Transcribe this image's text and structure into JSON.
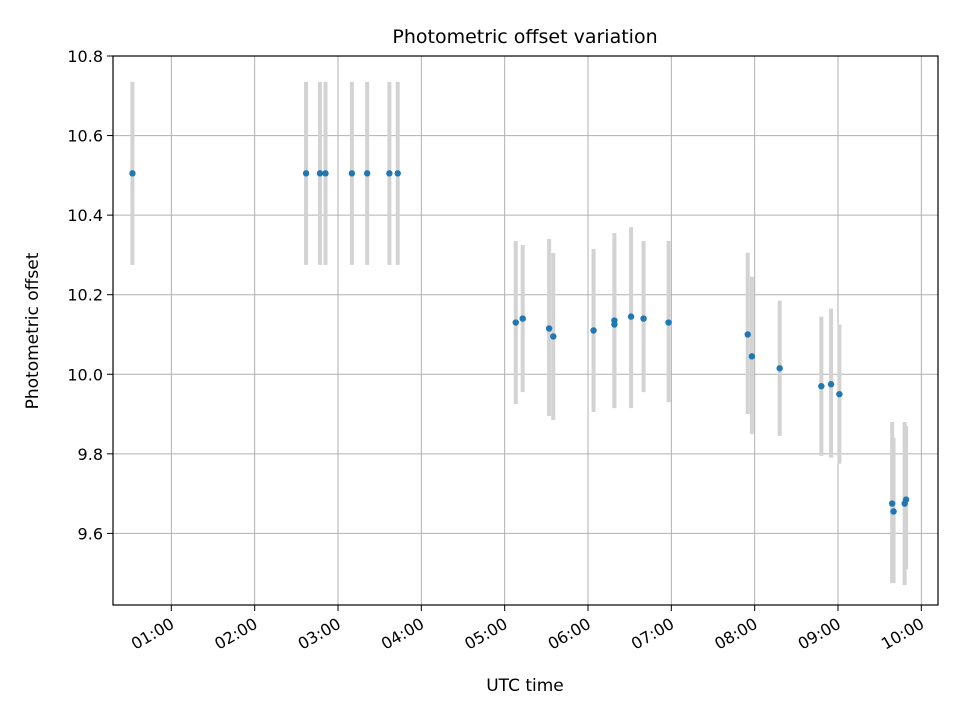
{
  "chart_data": {
    "type": "scatter",
    "title": "Photometric offset variation",
    "xlabel": "UTC time",
    "ylabel": "Photometric offset",
    "xlim": [
      "00:18",
      "10:12"
    ],
    "ylim": [
      9.42,
      10.8
    ],
    "x_ticks": [
      "01:00",
      "02:00",
      "03:00",
      "04:00",
      "05:00",
      "06:00",
      "07:00",
      "08:00",
      "09:00",
      "10:00"
    ],
    "y_ticks": [
      "9.6",
      "9.8",
      "10.0",
      "10.2",
      "10.4",
      "10.6",
      "10.8"
    ],
    "grid": true,
    "colors": {
      "points": "#1f77b4",
      "error_bars": "#d3d3d3",
      "grid": "#b0b0b0"
    },
    "series": [
      {
        "points": [
          {
            "x": "00:32",
            "y": 10.505,
            "ylow": 10.275,
            "yhigh": 10.735
          },
          {
            "x": "02:37",
            "y": 10.505,
            "ylow": 10.275,
            "yhigh": 10.735
          },
          {
            "x": "02:47",
            "y": 10.505,
            "ylow": 10.275,
            "yhigh": 10.735
          },
          {
            "x": "02:51",
            "y": 10.505,
            "ylow": 10.275,
            "yhigh": 10.735
          },
          {
            "x": "03:10",
            "y": 10.505,
            "ylow": 10.275,
            "yhigh": 10.735
          },
          {
            "x": "03:21",
            "y": 10.505,
            "ylow": 10.275,
            "yhigh": 10.735
          },
          {
            "x": "03:37",
            "y": 10.505,
            "ylow": 10.275,
            "yhigh": 10.735
          },
          {
            "x": "03:43",
            "y": 10.505,
            "ylow": 10.275,
            "yhigh": 10.735
          },
          {
            "x": "05:08",
            "y": 10.13,
            "ylow": 9.925,
            "yhigh": 10.335
          },
          {
            "x": "05:13",
            "y": 10.14,
            "ylow": 9.955,
            "yhigh": 10.325
          },
          {
            "x": "05:32",
            "y": 10.115,
            "ylow": 9.895,
            "yhigh": 10.34
          },
          {
            "x": "05:35",
            "y": 10.095,
            "ylow": 9.885,
            "yhigh": 10.305
          },
          {
            "x": "06:04",
            "y": 10.11,
            "ylow": 9.905,
            "yhigh": 10.315
          },
          {
            "x": "06:19",
            "y": 10.135,
            "ylow": 9.915,
            "yhigh": 10.355
          },
          {
            "x": "06:19",
            "y": 10.125,
            "ylow": 9.92,
            "yhigh": 10.33
          },
          {
            "x": "06:31",
            "y": 10.145,
            "ylow": 9.915,
            "yhigh": 10.37
          },
          {
            "x": "06:40",
            "y": 10.14,
            "ylow": 9.955,
            "yhigh": 10.335
          },
          {
            "x": "06:58",
            "y": 10.13,
            "ylow": 9.93,
            "yhigh": 10.335
          },
          {
            "x": "07:55",
            "y": 10.1,
            "ylow": 9.9,
            "yhigh": 10.305
          },
          {
            "x": "07:58",
            "y": 10.045,
            "ylow": 9.85,
            "yhigh": 10.245
          },
          {
            "x": "08:18",
            "y": 10.015,
            "ylow": 9.845,
            "yhigh": 10.185
          },
          {
            "x": "08:48",
            "y": 9.97,
            "ylow": 9.795,
            "yhigh": 10.145
          },
          {
            "x": "08:55",
            "y": 9.975,
            "ylow": 9.79,
            "yhigh": 10.165
          },
          {
            "x": "09:01",
            "y": 9.95,
            "ylow": 9.775,
            "yhigh": 10.125
          },
          {
            "x": "09:39",
            "y": 9.675,
            "ylow": 9.475,
            "yhigh": 9.88
          },
          {
            "x": "09:40",
            "y": 9.655,
            "ylow": 9.475,
            "yhigh": 9.84
          },
          {
            "x": "09:48",
            "y": 9.675,
            "ylow": 9.47,
            "yhigh": 9.88
          },
          {
            "x": "09:49",
            "y": 9.685,
            "ylow": 9.51,
            "yhigh": 9.87
          }
        ]
      }
    ]
  }
}
